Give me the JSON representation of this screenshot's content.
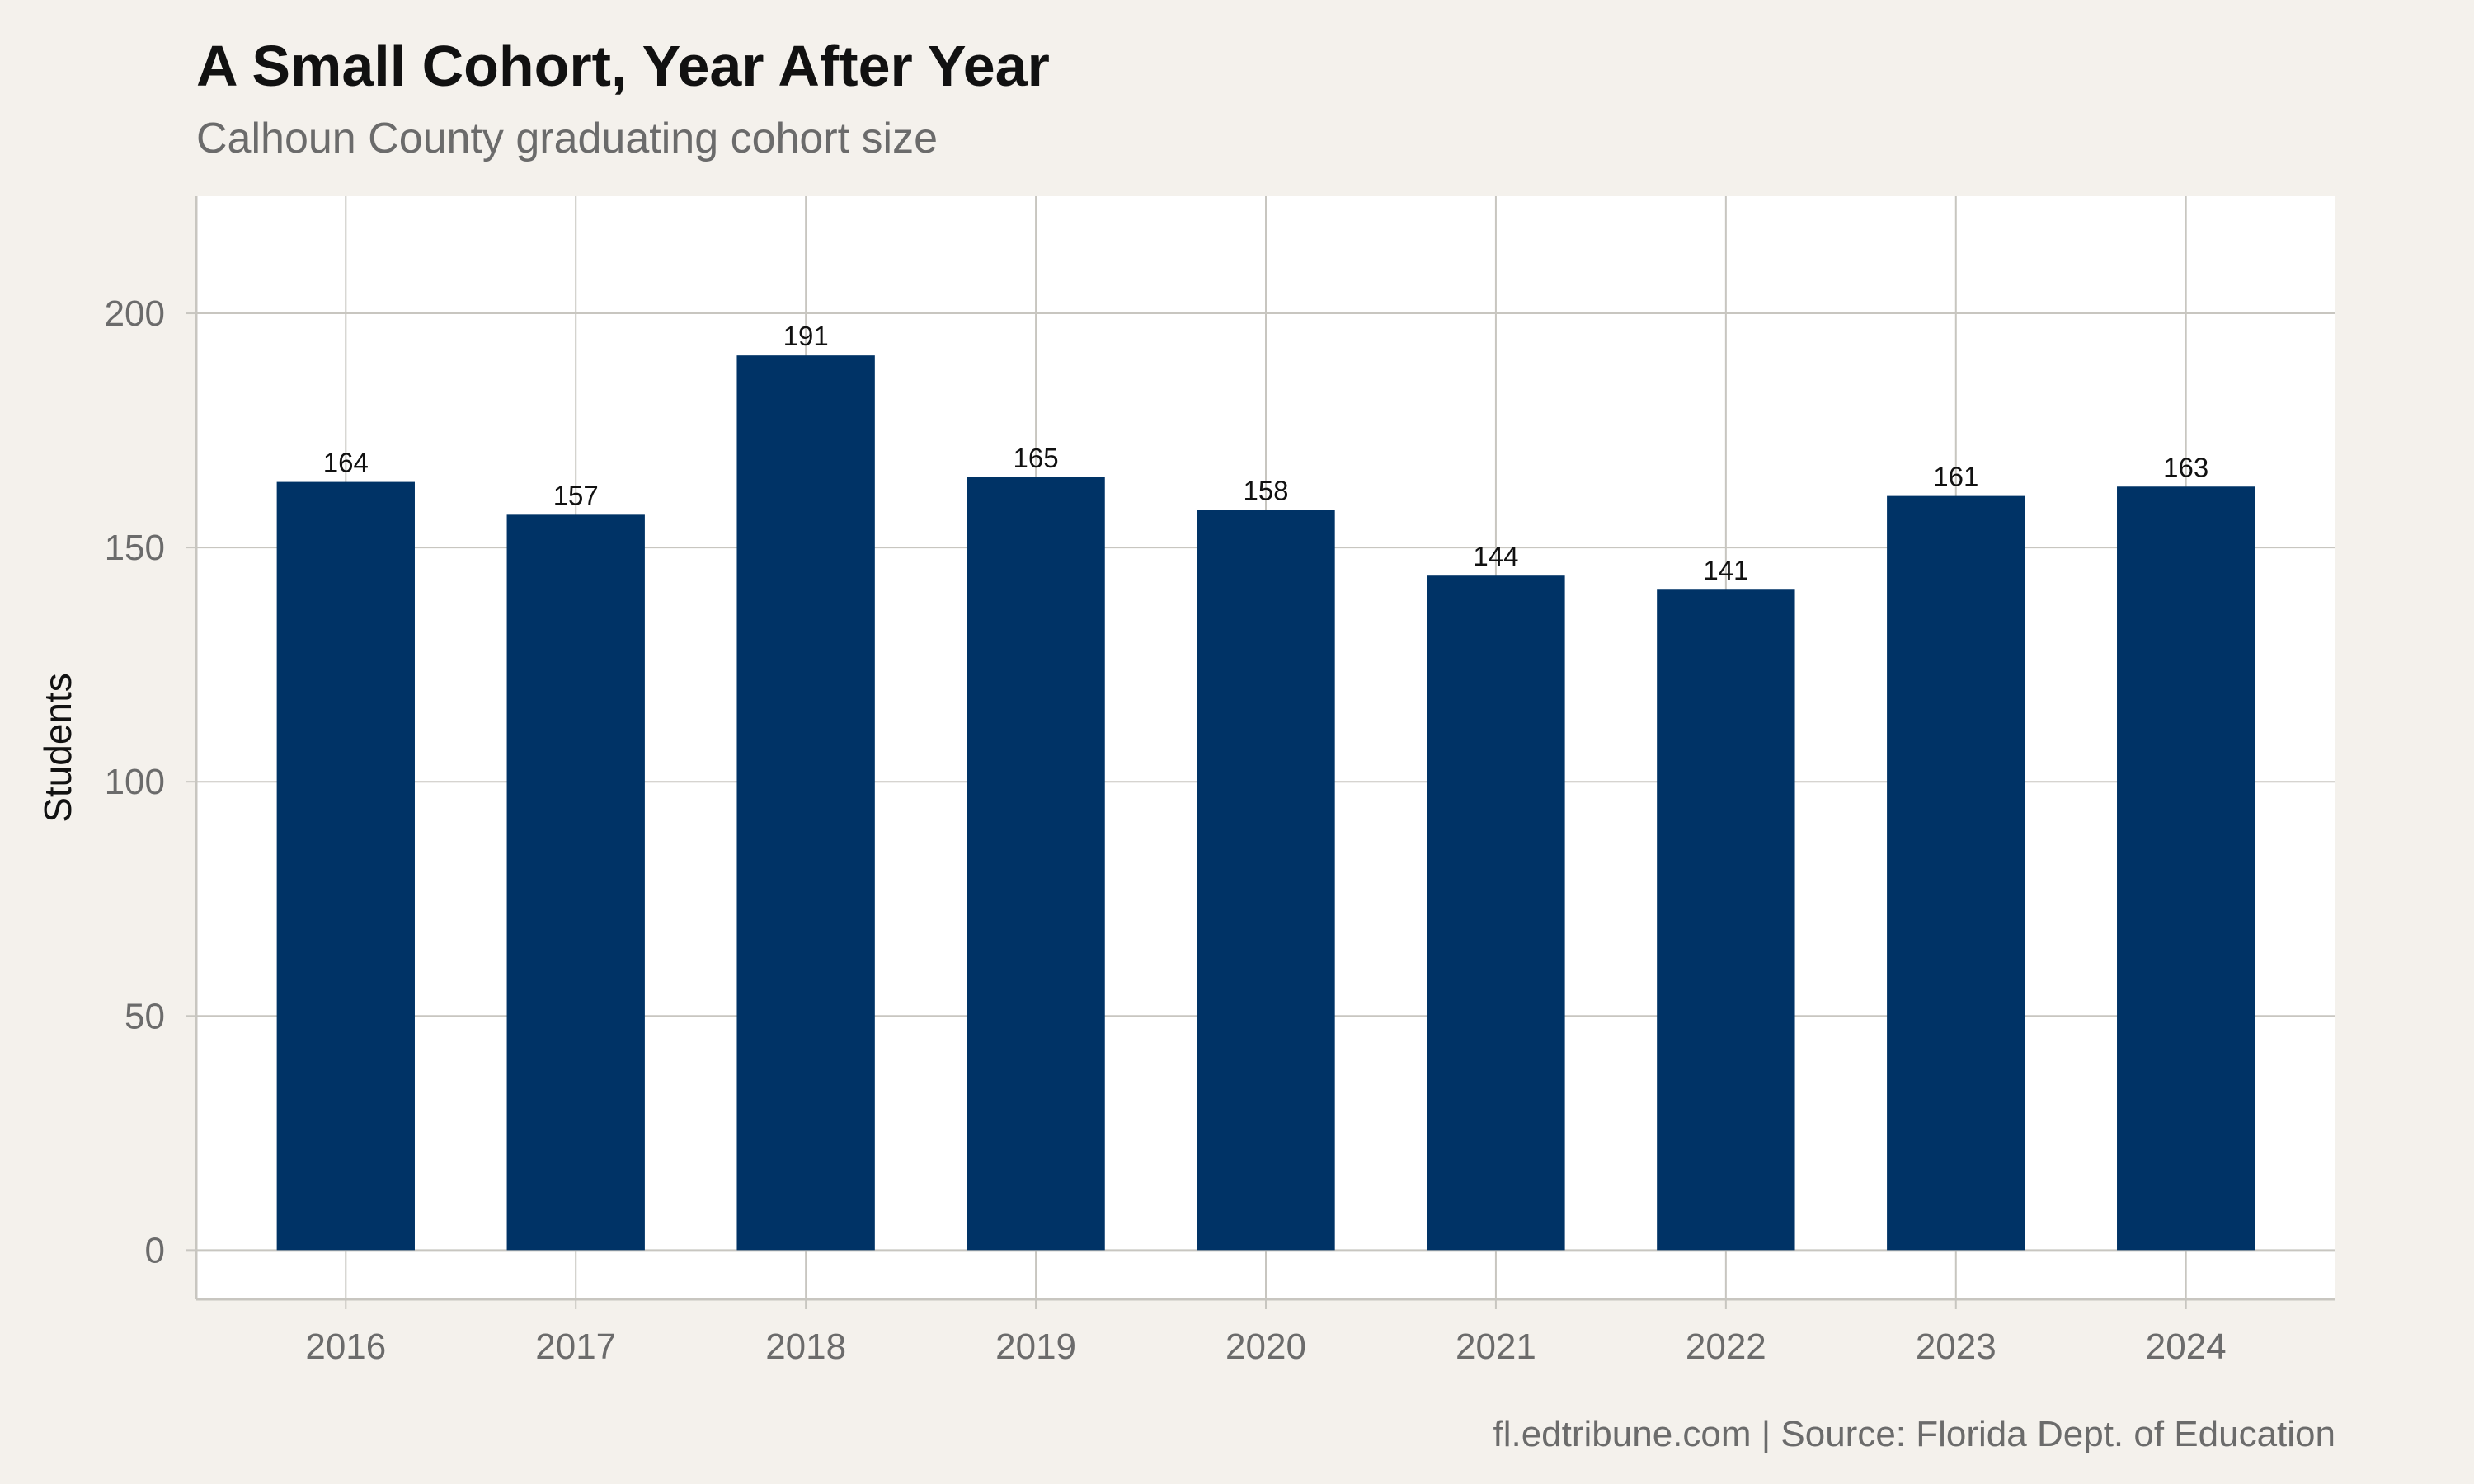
{
  "header": {
    "title": "A Small Cohort, Year After Year",
    "subtitle": "Calhoun County graduating cohort size"
  },
  "footer": {
    "caption": "fl.edtribune.com | Source: Florida Dept. of Education"
  },
  "colors": {
    "bar": "#003366",
    "panel": "#ffffff",
    "background": "#f4f1ec",
    "grid": "#c8c6c0"
  },
  "chart_data": {
    "type": "bar",
    "title": "A Small Cohort, Year After Year",
    "subtitle": "Calhoun County graduating cohort size",
    "xlabel": "",
    "ylabel": "Students",
    "categories": [
      "2016",
      "2017",
      "2018",
      "2019",
      "2020",
      "2021",
      "2022",
      "2023",
      "2024"
    ],
    "values": [
      164,
      157,
      191,
      165,
      158,
      144,
      141,
      161,
      163
    ],
    "data_labels": [
      "164",
      "157",
      "191",
      "165",
      "158",
      "144",
      "141",
      "161",
      "163"
    ],
    "yticks": [
      0,
      50,
      100,
      150,
      200
    ],
    "ytick_labels": [
      "0",
      "50",
      "100",
      "150",
      "200"
    ],
    "ylim": [
      -10.5,
      225
    ],
    "grid": true,
    "legend": "none"
  }
}
